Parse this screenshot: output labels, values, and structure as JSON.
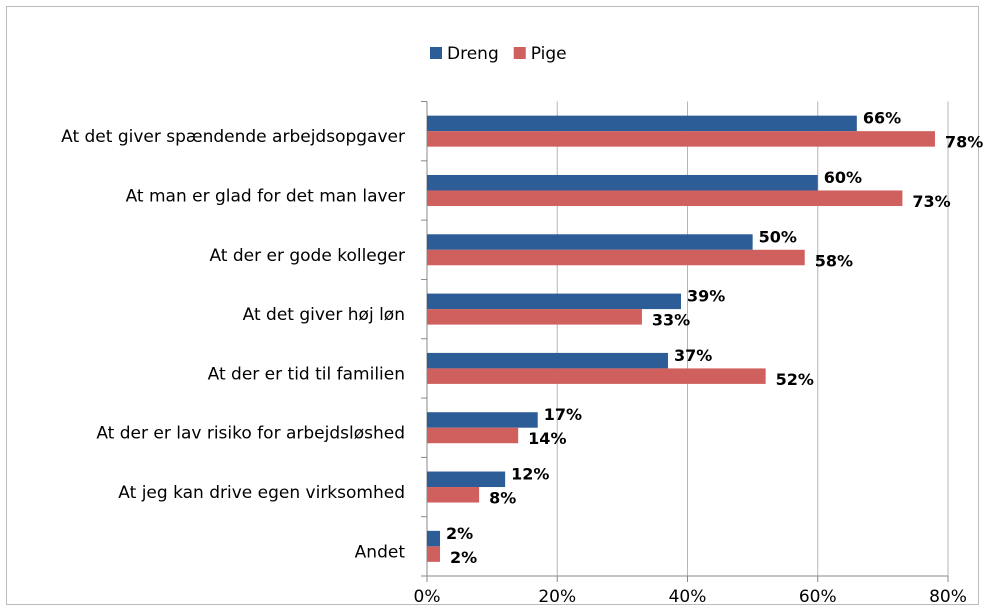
{
  "chart_data": {
    "type": "bar",
    "orientation": "horizontal",
    "categories": [
      "At det giver spændende arbejdsopgaver",
      "At man er glad for det man laver",
      "At der er gode kolleger",
      "At det giver høj løn",
      "At der er tid til familien",
      "At der er lav risiko for arbejdsløshed",
      "At jeg kan drive egen virksomhed",
      "Andet"
    ],
    "series": [
      {
        "name": "Dreng",
        "color": "#2c5d97",
        "values": [
          66,
          60,
          50,
          39,
          37,
          17,
          12,
          2
        ],
        "value_labels": [
          "66%",
          "60%",
          "50%",
          "39%",
          "37%",
          "17%",
          "12%",
          "2%"
        ]
      },
      {
        "name": "Pige",
        "color": "#d0605e",
        "values": [
          78,
          73,
          58,
          33,
          52,
          14,
          8,
          2
        ],
        "value_labels": [
          "78%",
          "73%",
          "58%",
          "33%",
          "52%",
          "14%",
          "8%",
          "2%"
        ]
      }
    ],
    "xlim": [
      0,
      80
    ],
    "xticks": [
      {
        "value": 0,
        "label": "0%"
      },
      {
        "value": 20,
        "label": "20%"
      },
      {
        "value": 40,
        "label": "40%"
      },
      {
        "value": 60,
        "label": "60%"
      },
      {
        "value": 80,
        "label": "80%"
      }
    ],
    "grid": true,
    "legend": "top"
  }
}
